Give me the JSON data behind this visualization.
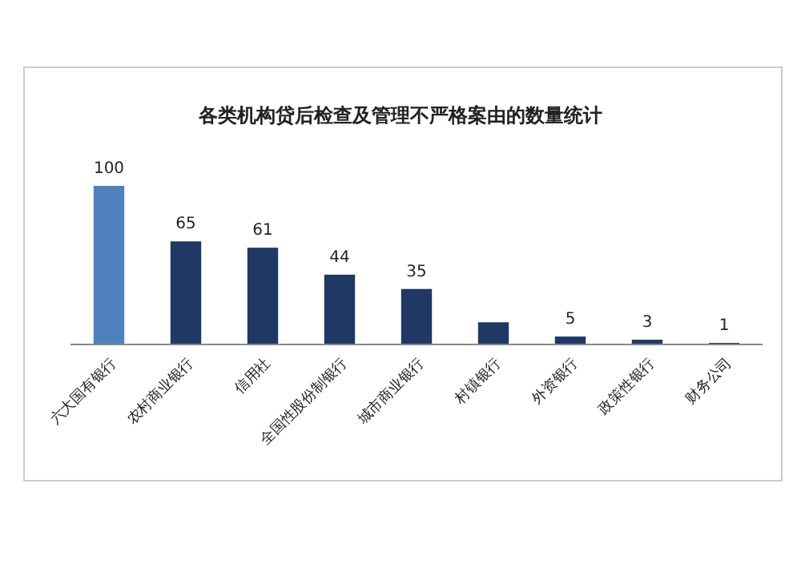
{
  "chart_data": {
    "type": "bar",
    "title": "各类机构贷后检查及管理不严格案由的数量统计",
    "categories": [
      "六大国有银行",
      "农村商业银行",
      "信用社",
      "全国性股份制银行",
      "城市商业银行",
      "村镇银行",
      "外资银行",
      "政策性银行",
      "财务公司"
    ],
    "values": [
      100,
      65,
      61,
      44,
      35,
      14,
      5,
      3,
      1
    ],
    "colors": [
      "#4f81bd",
      "#1f3864",
      "#1f3864",
      "#1f3864",
      "#1f3864",
      "#1f3864",
      "#1f3864",
      "#1f3864",
      "#1f3864"
    ],
    "value_labels": [
      "100",
      "65",
      "61",
      "44",
      "35",
      null,
      "5",
      "3",
      "1"
    ]
  }
}
